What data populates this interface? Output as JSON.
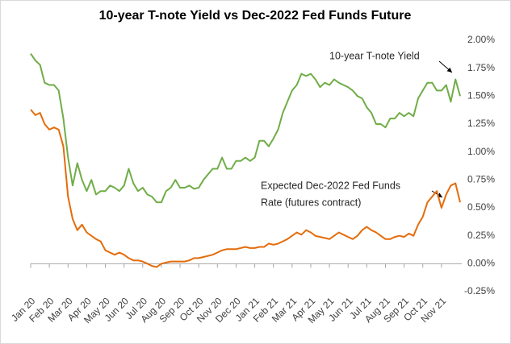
{
  "chart_data": {
    "type": "line",
    "title": "10-year T-note Yield vs Dec-2022 Fed Funds Future",
    "annotations": [
      "10-year T-note Yield",
      "Expected Dec-2022 Fed Funds",
      "Rate (futures contract)"
    ],
    "categories": [
      "Jan 20",
      null,
      null,
      null,
      "Feb 20",
      null,
      null,
      null,
      "Mar 20",
      null,
      null,
      null,
      "Apr 20",
      null,
      null,
      null,
      "May 20",
      null,
      null,
      null,
      "Jun 20",
      null,
      null,
      null,
      "Jul 20",
      null,
      null,
      null,
      "Aug 20",
      null,
      null,
      null,
      "Sep 20",
      null,
      null,
      null,
      "Oct 20",
      null,
      null,
      null,
      "Nov 20",
      null,
      null,
      null,
      "Dec 20",
      null,
      null,
      null,
      "Jan 21",
      null,
      null,
      null,
      "Feb 21",
      null,
      null,
      null,
      "Mar 21",
      null,
      null,
      null,
      "Apr 21",
      null,
      null,
      null,
      "May 21",
      null,
      null,
      null,
      "Jun 21",
      null,
      null,
      null,
      "Jul 21",
      null,
      null,
      null,
      "Aug 21",
      null,
      null,
      null,
      "Sep 21",
      null,
      null,
      null,
      "Oct 21",
      null,
      null,
      null,
      "Nov 21",
      null,
      null,
      null,
      null
    ],
    "series": [
      {
        "name": "10-year T-note Yield",
        "color": "#70ad47",
        "values": [
          1.88,
          1.82,
          1.78,
          1.62,
          1.6,
          1.6,
          1.55,
          1.3,
          0.95,
          0.7,
          0.9,
          0.75,
          0.65,
          0.75,
          0.62,
          0.65,
          0.65,
          0.7,
          0.68,
          0.65,
          0.7,
          0.85,
          0.72,
          0.65,
          0.68,
          0.62,
          0.6,
          0.55,
          0.55,
          0.65,
          0.68,
          0.75,
          0.68,
          0.68,
          0.7,
          0.67,
          0.68,
          0.75,
          0.8,
          0.85,
          0.85,
          0.95,
          0.85,
          0.85,
          0.92,
          0.92,
          0.95,
          0.92,
          0.95,
          1.1,
          1.1,
          1.05,
          1.12,
          1.2,
          1.35,
          1.45,
          1.55,
          1.6,
          1.7,
          1.68,
          1.7,
          1.65,
          1.58,
          1.62,
          1.6,
          1.65,
          1.62,
          1.6,
          1.58,
          1.55,
          1.5,
          1.48,
          1.4,
          1.35,
          1.25,
          1.25,
          1.22,
          1.3,
          1.3,
          1.35,
          1.32,
          1.35,
          1.32,
          1.48,
          1.55,
          1.62,
          1.62,
          1.55,
          1.55,
          1.6,
          1.45,
          1.65,
          1.5
        ]
      },
      {
        "name": "Expected Dec-2022 Fed Funds Rate (futures contract)",
        "color": "#e46c0a",
        "values": [
          1.38,
          1.33,
          1.35,
          1.25,
          1.2,
          1.22,
          1.2,
          1.05,
          0.6,
          0.4,
          0.3,
          0.35,
          0.28,
          0.25,
          0.22,
          0.2,
          0.12,
          0.1,
          0.08,
          0.1,
          0.08,
          0.05,
          0.03,
          0.03,
          0.02,
          0.0,
          -0.02,
          -0.03,
          0.0,
          0.01,
          0.02,
          0.02,
          0.02,
          0.02,
          0.03,
          0.05,
          0.05,
          0.06,
          0.07,
          0.08,
          0.1,
          0.12,
          0.13,
          0.13,
          0.13,
          0.14,
          0.15,
          0.14,
          0.14,
          0.15,
          0.15,
          0.18,
          0.17,
          0.18,
          0.2,
          0.22,
          0.25,
          0.28,
          0.26,
          0.3,
          0.28,
          0.25,
          0.24,
          0.23,
          0.22,
          0.25,
          0.28,
          0.26,
          0.24,
          0.22,
          0.25,
          0.3,
          0.33,
          0.3,
          0.28,
          0.25,
          0.22,
          0.22,
          0.24,
          0.25,
          0.24,
          0.27,
          0.25,
          0.35,
          0.42,
          0.55,
          0.6,
          0.65,
          0.5,
          0.62,
          0.7,
          0.72,
          0.55
        ]
      }
    ],
    "ylim": [
      -0.25,
      2.0
    ],
    "yticks": [
      {
        "value": 2.0,
        "label": "2.00%"
      },
      {
        "value": 1.75,
        "label": "1.75%"
      },
      {
        "value": 1.5,
        "label": "1.50%"
      },
      {
        "value": 1.25,
        "label": "1.25%"
      },
      {
        "value": 1.0,
        "label": "1.00%"
      },
      {
        "value": 0.75,
        "label": "0.75%"
      },
      {
        "value": 0.5,
        "label": "0.50%"
      },
      {
        "value": 0.25,
        "label": "0.25%"
      },
      {
        "value": 0,
        "label": "0.00%"
      },
      {
        "value": -0.25,
        "label": "-0.25%"
      }
    ],
    "grid": false
  }
}
